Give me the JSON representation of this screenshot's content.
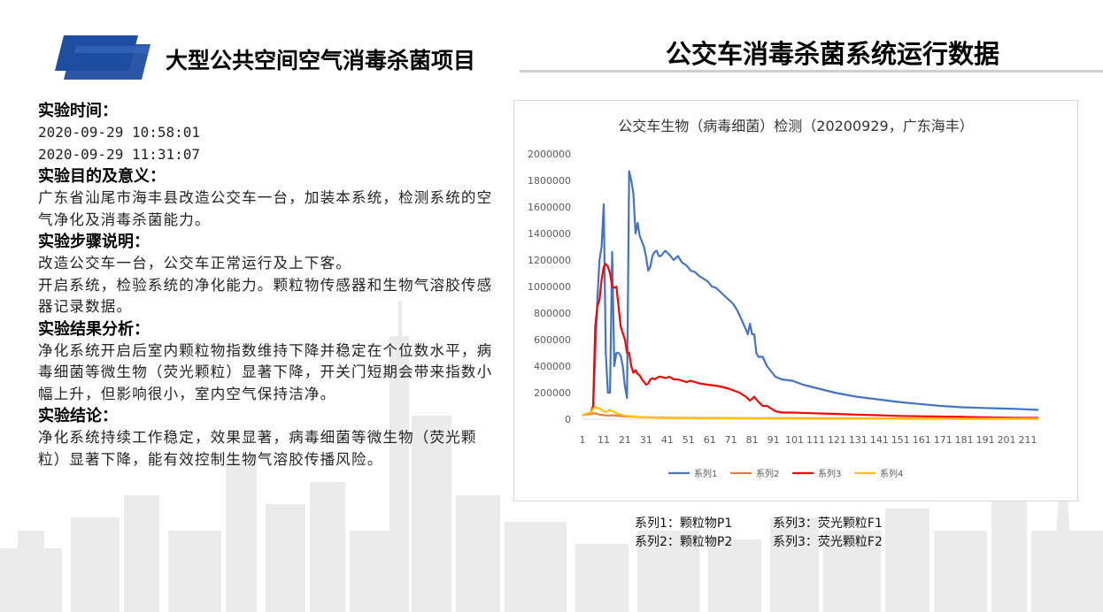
{
  "header": {
    "left_title": "大型公共空间空气消毒杀菌项目",
    "right_title": "公交车消毒杀菌系统运行数据"
  },
  "left": {
    "time_heading": "实验时间：",
    "time_lines": [
      "2020-09-29 10:58:01",
      "2020-09-29 11:31:07"
    ],
    "purpose_heading": "实验目的及意义：",
    "purpose_text": "广东省汕尾市海丰县改造公交车一台，加装本系统，检测系统的空气净化及消毒杀菌能力。",
    "steps_heading": "实验步骤说明：",
    "steps_lines": [
      "改造公交车一台，公交车正常运行及上下客。",
      "开启系统，检验系统的净化能力。颗粒物传感器和生物气溶胶传感器记录数据。"
    ],
    "analysis_heading": "实验结果分析：",
    "analysis_text": "净化系统开启后室内颗粒物指数维持下降并稳定在个位数水平，病毒细菌等微生物（荧光颗粒）显著下降，开关门短期会带来指数小幅上升，但影响很小，室内空气保持洁净。",
    "conclusion_heading": "实验结论：",
    "conclusion_text": "净化系统持续工作稳定，效果显著，病毒细菌等微生物（荧光颗粒）显著下降，能有效控制生物气溶胶传播风险。"
  },
  "legend_note": {
    "items": [
      "系列1：颗粒物P1",
      "系列3：荧光颗粒F1",
      "系列2：颗粒物P2",
      "系列3：荧光颗粒F2"
    ]
  },
  "colors": {
    "logo_blue": "#1f4ea1",
    "series1": "#4472c4",
    "series2": "#ed7d31",
    "series3": "#ff0000",
    "series4": "#ffc000",
    "skyline": "#ebebeb"
  },
  "chart_data": {
    "type": "line",
    "title": "公交车生物（病毒细菌）检测（20200929，广东海丰）",
    "xlabel": "",
    "ylabel": "",
    "xlim": [
      1,
      216
    ],
    "ylim": [
      0,
      2000000
    ],
    "y_ticks": [
      0,
      200000,
      400000,
      600000,
      800000,
      1000000,
      1200000,
      1400000,
      1600000,
      1800000,
      2000000
    ],
    "x_ticks": [
      1,
      11,
      21,
      31,
      41,
      51,
      61,
      71,
      81,
      91,
      101,
      111,
      121,
      131,
      141,
      151,
      161,
      171,
      181,
      191,
      201,
      211
    ],
    "grid": false,
    "legend_position": "bottom",
    "series": [
      {
        "name": "系列1",
        "x": [
          1,
          3,
          5,
          6,
          7,
          8,
          9,
          10,
          11,
          12,
          13,
          14,
          15,
          16,
          17,
          18,
          19,
          20,
          21,
          22,
          23,
          24,
          25,
          26,
          27,
          28,
          29,
          30,
          31,
          32,
          33,
          34,
          35,
          36,
          37,
          38,
          40,
          42,
          44,
          46,
          48,
          50,
          52,
          54,
          56,
          58,
          60,
          62,
          64,
          66,
          68,
          70,
          72,
          74,
          76,
          78,
          79,
          80,
          81,
          82,
          83,
          84,
          86,
          88,
          90,
          92,
          95,
          100,
          105,
          110,
          120,
          130,
          140,
          150,
          160,
          170,
          180,
          190,
          200,
          205,
          210,
          216
        ],
        "y": [
          30000,
          40000,
          50000,
          80000,
          500000,
          900000,
          1200000,
          1300000,
          1620000,
          500000,
          200000,
          200000,
          1260000,
          400000,
          500000,
          500000,
          480000,
          400000,
          250000,
          160000,
          1870000,
          1800000,
          1700000,
          1400000,
          1480000,
          1380000,
          1340000,
          1300000,
          1220000,
          1120000,
          1150000,
          1230000,
          1260000,
          1270000,
          1230000,
          1230000,
          1270000,
          1240000,
          1200000,
          1230000,
          1180000,
          1160000,
          1120000,
          1110000,
          1080000,
          1060000,
          1040000,
          1000000,
          990000,
          960000,
          930000,
          900000,
          870000,
          820000,
          750000,
          680000,
          640000,
          720000,
          640000,
          640000,
          500000,
          470000,
          470000,
          400000,
          360000,
          320000,
          300000,
          290000,
          260000,
          240000,
          200000,
          170000,
          150000,
          130000,
          115000,
          100000,
          90000,
          85000,
          80000,
          78000,
          75000,
          70000
        ]
      },
      {
        "name": "系列2",
        "x": [
          1,
          5,
          7,
          9,
          11,
          13,
          15,
          17,
          20,
          25,
          30,
          40,
          60,
          80,
          100,
          130,
          160,
          190,
          216
        ],
        "y": [
          30000,
          40000,
          45000,
          35000,
          30000,
          28000,
          30000,
          26000,
          22000,
          18000,
          15000,
          12000,
          9000,
          8000,
          7000,
          6000,
          5000,
          5000,
          5000
        ]
      },
      {
        "name": "系列3",
        "x": [
          1,
          3,
          5,
          6,
          7,
          8,
          9,
          10,
          11,
          12,
          13,
          14,
          15,
          16,
          17,
          18,
          19,
          20,
          21,
          22,
          23,
          24,
          25,
          26,
          27,
          28,
          29,
          30,
          31,
          32,
          33,
          34,
          35,
          36,
          37,
          38,
          40,
          42,
          44,
          46,
          48,
          50,
          52,
          54,
          56,
          60,
          65,
          70,
          75,
          78,
          80,
          82,
          84,
          86,
          88,
          90,
          92,
          95,
          100,
          110,
          120,
          130,
          140,
          150,
          160,
          170,
          180,
          190,
          200,
          210,
          216
        ],
        "y": [
          30000,
          40000,
          50000,
          100000,
          700000,
          850000,
          900000,
          1050000,
          1150000,
          1170000,
          1150000,
          1100000,
          1000000,
          990000,
          1000000,
          850000,
          700000,
          650000,
          600000,
          500000,
          500000,
          400000,
          350000,
          370000,
          340000,
          330000,
          300000,
          280000,
          260000,
          270000,
          300000,
          310000,
          300000,
          310000,
          320000,
          320000,
          310000,
          320000,
          300000,
          300000,
          290000,
          280000,
          290000,
          280000,
          270000,
          260000,
          250000,
          230000,
          200000,
          170000,
          140000,
          170000,
          130000,
          100000,
          100000,
          80000,
          60000,
          50000,
          50000,
          45000,
          40000,
          35000,
          30000,
          25000,
          22000,
          20000,
          18000,
          15000,
          12000,
          10000,
          10000
        ]
      },
      {
        "name": "系列4",
        "x": [
          1,
          3,
          5,
          6,
          7,
          8,
          9,
          10,
          11,
          12,
          13,
          14,
          15,
          16,
          17,
          18,
          20,
          22,
          25,
          30,
          35,
          40,
          50,
          60,
          70,
          80,
          100,
          130,
          160,
          190,
          216
        ],
        "y": [
          30000,
          40000,
          50000,
          80000,
          90000,
          85000,
          80000,
          70000,
          60000,
          55000,
          60000,
          70000,
          60000,
          55000,
          45000,
          40000,
          30000,
          25000,
          20000,
          15000,
          12000,
          10000,
          9000,
          8000,
          7000,
          6000,
          5000,
          4000,
          3000,
          3000,
          3000
        ]
      }
    ]
  }
}
